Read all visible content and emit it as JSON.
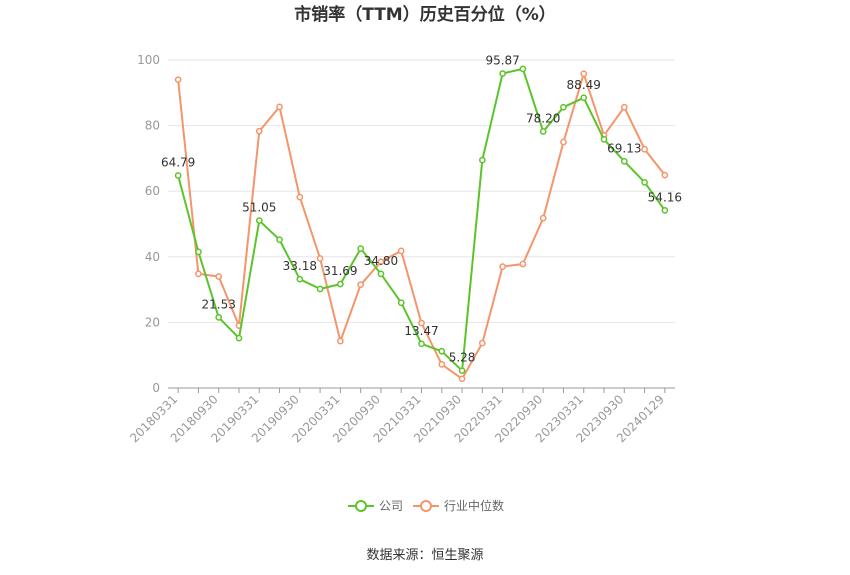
{
  "chart_data": {
    "type": "line",
    "title": "市销率（TTM）历史百分位（%）",
    "source": "数据来源：恒生聚源",
    "xlabel": "",
    "ylabel": "",
    "ylim": [
      0,
      100
    ],
    "yticks": [
      0,
      20,
      40,
      60,
      80,
      100
    ],
    "x": [
      "20180331",
      "20180630",
      "20180930",
      "20181231",
      "20190331",
      "20190630",
      "20190930",
      "20191231",
      "20200331",
      "20200630",
      "20200930",
      "20201231",
      "20210331",
      "20210630",
      "20210930",
      "20211231",
      "20220331",
      "20220630",
      "20220930",
      "20221231",
      "20230331",
      "20230630",
      "20230930",
      "20231231",
      "20240129"
    ],
    "xticks_shown": [
      "20180331",
      "20180930",
      "20190331",
      "20190930",
      "20200331",
      "20200930",
      "20210331",
      "20210930",
      "20220331",
      "20220930",
      "20230331",
      "20230930",
      "20240129"
    ],
    "legend_position": "bottom",
    "grid": true,
    "series": [
      {
        "name": "公司",
        "color": "#5cc42b",
        "values": [
          64.79,
          41.5,
          21.53,
          15.2,
          51.05,
          45.2,
          33.18,
          30.2,
          31.69,
          42.5,
          34.8,
          26.0,
          13.47,
          11.2,
          5.28,
          69.5,
          95.87,
          97.3,
          78.2,
          85.6,
          88.49,
          75.8,
          69.13,
          62.7,
          54.16
        ],
        "labels": {
          "0": "64.79",
          "2": "21.53",
          "4": "51.05",
          "6": "33.18",
          "8": "31.69",
          "10": "34.80",
          "12": "13.47",
          "14": "5.28",
          "16": "95.87",
          "18": "78.20",
          "20": "88.49",
          "22": "69.13",
          "24": "54.16"
        }
      },
      {
        "name": "行业中位数",
        "color": "#f4956b",
        "values": [
          94.0,
          34.8,
          34.0,
          19.0,
          78.3,
          85.7,
          58.2,
          39.5,
          14.3,
          31.5,
          38.5,
          41.8,
          19.8,
          7.2,
          2.8,
          13.7,
          37.0,
          37.8,
          51.8,
          75.0,
          95.8,
          77.0,
          85.6,
          72.8,
          64.9
        ]
      }
    ]
  }
}
